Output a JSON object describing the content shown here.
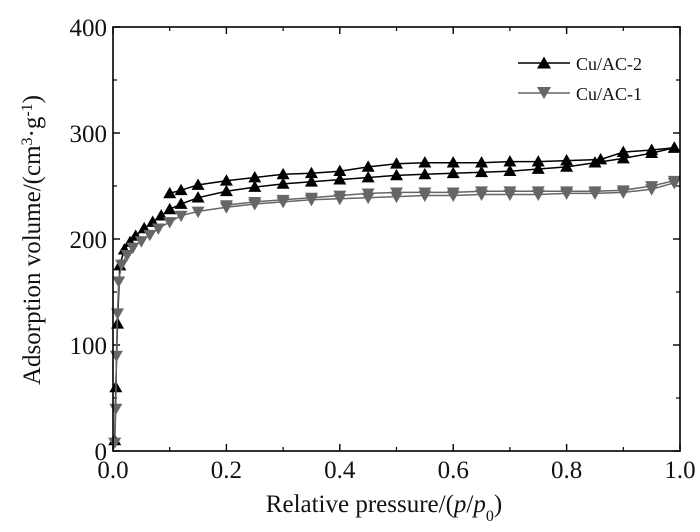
{
  "chart_data": {
    "type": "line",
    "title": "",
    "xlabel": {
      "prefix": "Relative pressure/(",
      "p": "p",
      "slash": "/",
      "p0": "p",
      "p0_sub": "0",
      "suffix": ")"
    },
    "ylabel": {
      "prefix": "Adsorption volume/(cm",
      "cm_sup": "3",
      "dot": "·g",
      "g_sup": "-1",
      "suffix": ")"
    },
    "xlim": [
      0.0,
      1.0
    ],
    "ylim": [
      0,
      400
    ],
    "xticks": [
      "0.0",
      "0.2",
      "0.4",
      "0.6",
      "0.8",
      "1.0"
    ],
    "xtick_values": [
      0.0,
      0.2,
      0.4,
      0.6,
      0.8,
      1.0
    ],
    "yticks": [
      "0",
      "100",
      "200",
      "300",
      "400"
    ],
    "ytick_values": [
      0,
      100,
      200,
      300,
      400
    ],
    "legend_position": "top-right",
    "series": [
      {
        "name": "Cu/AC-2",
        "color": "#000000",
        "marker": "triangle-up",
        "adsorption": {
          "x": [
            0.003,
            0.005,
            0.008,
            0.012,
            0.02,
            0.03,
            0.04,
            0.055,
            0.07,
            0.085,
            0.1,
            0.12,
            0.15,
            0.2,
            0.25,
            0.3,
            0.35,
            0.4,
            0.45,
            0.5,
            0.55,
            0.6,
            0.65,
            0.7,
            0.75,
            0.8,
            0.85,
            0.9,
            0.95,
            0.99
          ],
          "y": [
            10,
            60,
            120,
            175,
            190,
            197,
            203,
            210,
            216,
            222,
            228,
            233,
            239,
            245,
            249,
            252,
            254,
            256,
            258,
            260,
            261,
            262,
            263,
            264,
            266,
            268,
            272,
            276,
            281,
            286
          ]
        },
        "desorption": {
          "x": [
            0.99,
            0.95,
            0.9,
            0.86,
            0.8,
            0.75,
            0.7,
            0.65,
            0.6,
            0.55,
            0.5,
            0.45,
            0.4,
            0.35,
            0.3,
            0.25,
            0.2,
            0.15,
            0.12,
            0.1
          ],
          "y": [
            286,
            284,
            282,
            275,
            274,
            273,
            273,
            272,
            272,
            272,
            271,
            268,
            264,
            262,
            261,
            258,
            255,
            251,
            246,
            243
          ]
        }
      },
      {
        "name": "Cu/AC-1",
        "color": "#666666",
        "marker": "triangle-down",
        "adsorption": {
          "x": [
            0.003,
            0.005,
            0.006,
            0.008,
            0.01,
            0.015,
            0.025,
            0.035,
            0.05,
            0.065,
            0.08,
            0.1,
            0.12,
            0.15,
            0.2,
            0.25,
            0.3,
            0.35,
            0.4,
            0.45,
            0.5,
            0.55,
            0.6,
            0.65,
            0.7,
            0.75,
            0.8,
            0.85,
            0.9,
            0.95,
            0.99
          ],
          "y": [
            8,
            40,
            90,
            130,
            160,
            176,
            185,
            192,
            198,
            204,
            210,
            216,
            222,
            226,
            230,
            233,
            235,
            237,
            238,
            239,
            240,
            241,
            241,
            242,
            242,
            242,
            243,
            243,
            244,
            247,
            253
          ]
        },
        "desorption": {
          "x": [
            0.99,
            0.95,
            0.9,
            0.85,
            0.8,
            0.75,
            0.7,
            0.65,
            0.6,
            0.55,
            0.5,
            0.45,
            0.4,
            0.35,
            0.3,
            0.25,
            0.2
          ],
          "y": [
            255,
            250,
            246,
            245,
            245,
            245,
            245,
            245,
            244,
            244,
            244,
            243,
            241,
            239,
            237,
            235,
            232
          ]
        }
      }
    ]
  }
}
